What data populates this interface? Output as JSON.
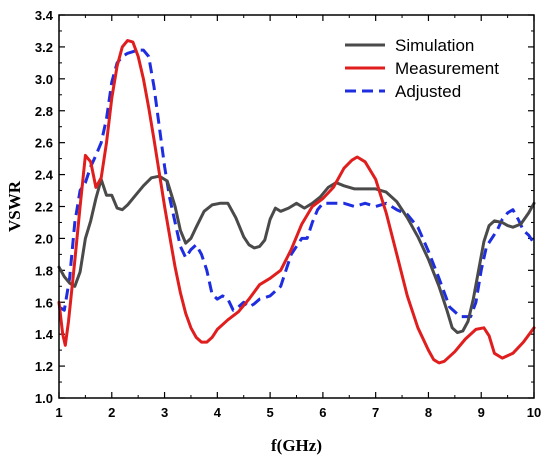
{
  "chart_data": {
    "type": "line",
    "title": "",
    "xlabel": "f(GHz)",
    "ylabel": "VSWR",
    "xlim": [
      1,
      10
    ],
    "ylim": [
      1.0,
      3.4
    ],
    "xticks": [
      1,
      2,
      3,
      4,
      5,
      6,
      7,
      8,
      9,
      10
    ],
    "yticks": [
      1.0,
      1.2,
      1.4,
      1.6,
      1.8,
      2.0,
      2.2,
      2.4,
      2.6,
      2.8,
      3.0,
      3.2,
      3.4
    ],
    "xtick_labels": [
      "1",
      "2",
      "3",
      "4",
      "5",
      "6",
      "7",
      "8",
      "9",
      "10"
    ],
    "ytick_labels": [
      "1.0",
      "1.2",
      "1.4",
      "1.6",
      "1.8",
      "2.0",
      "2.2",
      "2.4",
      "2.6",
      "2.8",
      "3.0",
      "3.2",
      "3.4"
    ],
    "grid": false,
    "legend_position": "top-right",
    "series": [
      {
        "name": "Simulation",
        "color": "#4a4a4a",
        "dash": "solid",
        "points": [
          [
            1.0,
            1.82
          ],
          [
            1.1,
            1.76
          ],
          [
            1.2,
            1.72
          ],
          [
            1.3,
            1.7
          ],
          [
            1.4,
            1.79
          ],
          [
            1.5,
            2.0
          ],
          [
            1.6,
            2.11
          ],
          [
            1.7,
            2.25
          ],
          [
            1.8,
            2.37
          ],
          [
            1.9,
            2.27
          ],
          [
            2.0,
            2.27
          ],
          [
            2.1,
            2.19
          ],
          [
            2.2,
            2.18
          ],
          [
            2.3,
            2.21
          ],
          [
            2.45,
            2.27
          ],
          [
            2.6,
            2.33
          ],
          [
            2.75,
            2.38
          ],
          [
            2.9,
            2.39
          ],
          [
            3.05,
            2.36
          ],
          [
            3.2,
            2.2
          ],
          [
            3.3,
            2.05
          ],
          [
            3.4,
            1.97
          ],
          [
            3.5,
            2.0
          ],
          [
            3.6,
            2.07
          ],
          [
            3.75,
            2.17
          ],
          [
            3.9,
            2.21
          ],
          [
            4.05,
            2.22
          ],
          [
            4.2,
            2.22
          ],
          [
            4.35,
            2.13
          ],
          [
            4.5,
            2.01
          ],
          [
            4.6,
            1.96
          ],
          [
            4.7,
            1.94
          ],
          [
            4.8,
            1.95
          ],
          [
            4.9,
            1.99
          ],
          [
            5.0,
            2.12
          ],
          [
            5.1,
            2.19
          ],
          [
            5.2,
            2.17
          ],
          [
            5.35,
            2.19
          ],
          [
            5.5,
            2.22
          ],
          [
            5.65,
            2.19
          ],
          [
            5.8,
            2.22
          ],
          [
            5.95,
            2.26
          ],
          [
            6.1,
            2.32
          ],
          [
            6.25,
            2.35
          ],
          [
            6.4,
            2.33
          ],
          [
            6.6,
            2.31
          ],
          [
            6.8,
            2.31
          ],
          [
            7.0,
            2.31
          ],
          [
            7.2,
            2.29
          ],
          [
            7.4,
            2.23
          ],
          [
            7.6,
            2.13
          ],
          [
            7.8,
            2.01
          ],
          [
            8.0,
            1.87
          ],
          [
            8.2,
            1.7
          ],
          [
            8.35,
            1.55
          ],
          [
            8.45,
            1.44
          ],
          [
            8.55,
            1.41
          ],
          [
            8.65,
            1.42
          ],
          [
            8.75,
            1.48
          ],
          [
            8.85,
            1.62
          ],
          [
            8.95,
            1.8
          ],
          [
            9.05,
            1.98
          ],
          [
            9.15,
            2.08
          ],
          [
            9.25,
            2.11
          ],
          [
            9.4,
            2.1
          ],
          [
            9.5,
            2.08
          ],
          [
            9.6,
            2.07
          ],
          [
            9.75,
            2.09
          ],
          [
            9.9,
            2.16
          ],
          [
            10.0,
            2.22
          ]
        ]
      },
      {
        "name": "Measurement",
        "color": "#e01e1e",
        "dash": "solid",
        "points": [
          [
            1.0,
            1.6
          ],
          [
            1.07,
            1.4
          ],
          [
            1.12,
            1.33
          ],
          [
            1.18,
            1.48
          ],
          [
            1.3,
            1.86
          ],
          [
            1.4,
            2.2
          ],
          [
            1.5,
            2.52
          ],
          [
            1.6,
            2.48
          ],
          [
            1.7,
            2.32
          ],
          [
            1.8,
            2.38
          ],
          [
            1.9,
            2.6
          ],
          [
            2.0,
            2.88
          ],
          [
            2.1,
            3.08
          ],
          [
            2.2,
            3.2
          ],
          [
            2.3,
            3.24
          ],
          [
            2.4,
            3.23
          ],
          [
            2.5,
            3.14
          ],
          [
            2.6,
            3.0
          ],
          [
            2.7,
            2.82
          ],
          [
            2.8,
            2.62
          ],
          [
            2.9,
            2.41
          ],
          [
            3.0,
            2.2
          ],
          [
            3.1,
            2.01
          ],
          [
            3.2,
            1.82
          ],
          [
            3.3,
            1.66
          ],
          [
            3.4,
            1.53
          ],
          [
            3.5,
            1.44
          ],
          [
            3.6,
            1.38
          ],
          [
            3.7,
            1.35
          ],
          [
            3.8,
            1.35
          ],
          [
            3.9,
            1.38
          ],
          [
            4.0,
            1.43
          ],
          [
            4.2,
            1.49
          ],
          [
            4.4,
            1.54
          ],
          [
            4.6,
            1.62
          ],
          [
            4.8,
            1.71
          ],
          [
            5.0,
            1.75
          ],
          [
            5.2,
            1.8
          ],
          [
            5.4,
            1.93
          ],
          [
            5.6,
            2.09
          ],
          [
            5.8,
            2.2
          ],
          [
            6.0,
            2.25
          ],
          [
            6.2,
            2.32
          ],
          [
            6.4,
            2.44
          ],
          [
            6.55,
            2.49
          ],
          [
            6.65,
            2.51
          ],
          [
            6.8,
            2.48
          ],
          [
            7.0,
            2.37
          ],
          [
            7.2,
            2.16
          ],
          [
            7.4,
            1.9
          ],
          [
            7.6,
            1.64
          ],
          [
            7.8,
            1.44
          ],
          [
            8.0,
            1.3
          ],
          [
            8.1,
            1.24
          ],
          [
            8.2,
            1.22
          ],
          [
            8.3,
            1.23
          ],
          [
            8.5,
            1.29
          ],
          [
            8.7,
            1.37
          ],
          [
            8.9,
            1.43
          ],
          [
            9.05,
            1.44
          ],
          [
            9.15,
            1.39
          ],
          [
            9.25,
            1.28
          ],
          [
            9.4,
            1.25
          ],
          [
            9.6,
            1.28
          ],
          [
            9.8,
            1.35
          ],
          [
            10.0,
            1.44
          ]
        ]
      },
      {
        "name": "Adjusted",
        "color": "#1e2de0",
        "dash": "dashed",
        "points": [
          [
            1.0,
            1.57
          ],
          [
            1.1,
            1.55
          ],
          [
            1.2,
            1.75
          ],
          [
            1.3,
            2.1
          ],
          [
            1.4,
            2.3
          ],
          [
            1.5,
            2.35
          ],
          [
            1.6,
            2.45
          ],
          [
            1.7,
            2.52
          ],
          [
            1.8,
            2.6
          ],
          [
            1.9,
            2.75
          ],
          [
            2.0,
            2.98
          ],
          [
            2.1,
            3.1
          ],
          [
            2.2,
            3.14
          ],
          [
            2.3,
            3.16
          ],
          [
            2.4,
            3.17
          ],
          [
            2.5,
            3.18
          ],
          [
            2.6,
            3.18
          ],
          [
            2.7,
            3.14
          ],
          [
            2.8,
            2.95
          ],
          [
            2.9,
            2.7
          ],
          [
            3.0,
            2.45
          ],
          [
            3.1,
            2.25
          ],
          [
            3.2,
            2.1
          ],
          [
            3.3,
            1.95
          ],
          [
            3.4,
            1.88
          ],
          [
            3.5,
            1.93
          ],
          [
            3.6,
            1.96
          ],
          [
            3.7,
            1.9
          ],
          [
            3.8,
            1.8
          ],
          [
            3.9,
            1.65
          ],
          [
            4.0,
            1.62
          ],
          [
            4.1,
            1.64
          ],
          [
            4.2,
            1.62
          ],
          [
            4.3,
            1.55
          ],
          [
            4.4,
            1.57
          ],
          [
            4.5,
            1.6
          ],
          [
            4.6,
            1.57
          ],
          [
            4.7,
            1.59
          ],
          [
            4.8,
            1.62
          ],
          [
            5.0,
            1.64
          ],
          [
            5.2,
            1.7
          ],
          [
            5.4,
            1.9
          ],
          [
            5.6,
            2.0
          ],
          [
            5.7,
            2.0
          ],
          [
            5.8,
            2.1
          ],
          [
            5.9,
            2.18
          ],
          [
            6.0,
            2.22
          ],
          [
            6.2,
            2.22
          ],
          [
            6.4,
            2.22
          ],
          [
            6.6,
            2.2
          ],
          [
            6.8,
            2.22
          ],
          [
            7.0,
            2.2
          ],
          [
            7.2,
            2.22
          ],
          [
            7.4,
            2.18
          ],
          [
            7.6,
            2.15
          ],
          [
            7.8,
            2.07
          ],
          [
            8.0,
            1.92
          ],
          [
            8.2,
            1.75
          ],
          [
            8.4,
            1.57
          ],
          [
            8.6,
            1.51
          ],
          [
            8.8,
            1.51
          ],
          [
            8.9,
            1.6
          ],
          [
            9.0,
            1.8
          ],
          [
            9.1,
            1.95
          ],
          [
            9.3,
            2.05
          ],
          [
            9.4,
            2.12
          ],
          [
            9.5,
            2.16
          ],
          [
            9.6,
            2.18
          ],
          [
            9.7,
            2.12
          ],
          [
            9.8,
            2.05
          ],
          [
            9.9,
            2.02
          ],
          [
            10.0,
            1.97
          ]
        ]
      }
    ]
  }
}
